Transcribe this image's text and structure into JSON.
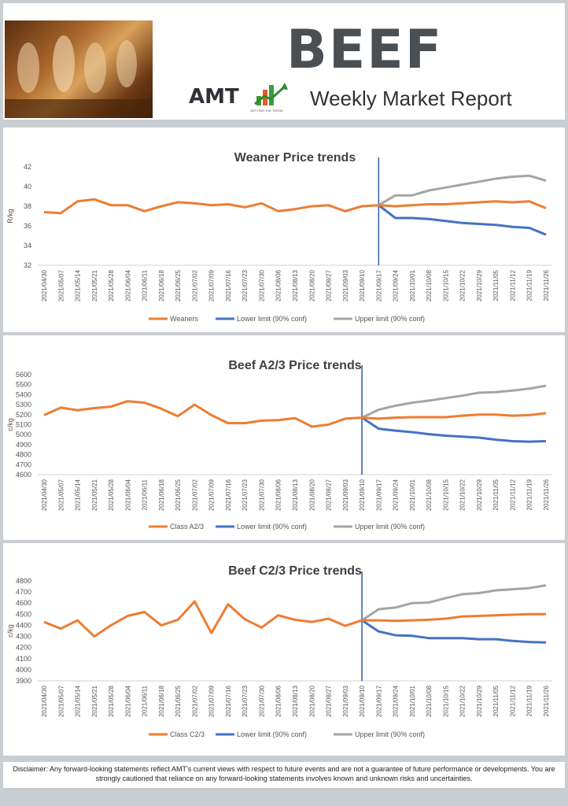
{
  "header": {
    "title": "BEEF",
    "logo_text": "AMT",
    "logo_tagline": "GETTING THE TREND",
    "subtitle": "Weekly Market Report"
  },
  "colors": {
    "actual": "#ed7d31",
    "lower": "#4472c4",
    "upper": "#a5a5a5",
    "divider": "#2e5ca8"
  },
  "chart_data": [
    {
      "type": "line",
      "title": "Weaner Price trends",
      "ylabel": "R/kg",
      "ylim": [
        32,
        42
      ],
      "yticks": [
        32,
        34,
        36,
        38,
        40,
        42
      ],
      "forecast_start": "2021/09/17",
      "categories": [
        "2021/04/30",
        "2021/05/07",
        "2021/05/14",
        "2021/05/21",
        "2021/05/28",
        "2021/06/04",
        "2021/06/11",
        "2021/06/18",
        "2021/06/25",
        "2021/07/02",
        "2021/07/09",
        "2021/07/16",
        "2021/07/23",
        "2021/07/30",
        "2021/08/06",
        "2021/08/13",
        "2021/08/20",
        "2021/08/27",
        "2021/09/03",
        "2021/09/10",
        "2021/09/17",
        "2021/09/24",
        "2021/10/01",
        "2021/10/08",
        "2021/10/15",
        "2021/10/22",
        "2021/10/29",
        "2021/11/05",
        "2021/11/12",
        "2021/11/19",
        "2021/11/26"
      ],
      "series": [
        {
          "name": "Weaners",
          "values": [
            37.4,
            37.3,
            38.5,
            38.7,
            38.1,
            38.1,
            37.5,
            38.0,
            38.4,
            38.3,
            38.1,
            38.2,
            37.9,
            38.3,
            37.5,
            37.7,
            38.0,
            38.1,
            37.5,
            38.0,
            38.1,
            38.0,
            38.1,
            38.2,
            38.2,
            38.3,
            38.4,
            38.5,
            38.4,
            38.5,
            37.8
          ]
        },
        {
          "name": "Lower limit (90% conf)",
          "values": [
            null,
            null,
            null,
            null,
            null,
            null,
            null,
            null,
            null,
            null,
            null,
            null,
            null,
            null,
            null,
            null,
            null,
            null,
            null,
            null,
            38.1,
            36.8,
            36.8,
            36.7,
            36.5,
            36.3,
            36.2,
            36.1,
            35.9,
            35.8,
            35.1
          ]
        },
        {
          "name": "Upper limit (90% conf)",
          "values": [
            null,
            null,
            null,
            null,
            null,
            null,
            null,
            null,
            null,
            null,
            null,
            null,
            null,
            null,
            null,
            null,
            null,
            null,
            null,
            null,
            38.1,
            39.1,
            39.1,
            39.6,
            39.9,
            40.2,
            40.5,
            40.8,
            41.0,
            41.1,
            40.6
          ]
        }
      ]
    },
    {
      "type": "line",
      "title": "Beef A2/3 Price trends",
      "ylabel": "c/kg",
      "ylim": [
        4600,
        5600
      ],
      "yticks": [
        4600,
        4700,
        4800,
        4900,
        5000,
        5100,
        5200,
        5300,
        5400,
        5500,
        5600
      ],
      "forecast_start": "2021/09/10",
      "categories": [
        "2021/04/30",
        "2021/05/07",
        "2021/05/14",
        "2021/05/21",
        "2021/05/28",
        "2021/06/04",
        "2021/06/11",
        "2021/06/18",
        "2021/06/25",
        "2021/07/02",
        "2021/07/09",
        "2021/07/16",
        "2021/07/23",
        "2021/07/30",
        "2021/08/06",
        "2021/08/13",
        "2021/08/20",
        "2021/08/27",
        "2021/09/03",
        "2021/09/10",
        "2021/09/17",
        "2021/09/24",
        "2021/10/01",
        "2021/10/08",
        "2021/10/15",
        "2021/10/22",
        "2021/10/29",
        "2021/11/05",
        "2021/11/12",
        "2021/11/19",
        "2021/11/26"
      ],
      "series": [
        {
          "name": "Class A2/3",
          "values": [
            5195,
            5270,
            5245,
            5265,
            5280,
            5335,
            5320,
            5260,
            5185,
            5300,
            5195,
            5115,
            5115,
            5140,
            5145,
            5165,
            5080,
            5100,
            5160,
            5170,
            5160,
            5170,
            5175,
            5175,
            5175,
            5190,
            5200,
            5200,
            5190,
            5195,
            5215
          ]
        },
        {
          "name": "Lower limit (90% conf)",
          "values": [
            null,
            null,
            null,
            null,
            null,
            null,
            null,
            null,
            null,
            null,
            null,
            null,
            null,
            null,
            null,
            null,
            null,
            null,
            null,
            5170,
            5060,
            5040,
            5025,
            5005,
            4990,
            4980,
            4970,
            4950,
            4935,
            4930,
            4935
          ]
        },
        {
          "name": "Upper limit (90% conf)",
          "values": [
            null,
            null,
            null,
            null,
            null,
            null,
            null,
            null,
            null,
            null,
            null,
            null,
            null,
            null,
            null,
            null,
            null,
            null,
            null,
            5170,
            5250,
            5290,
            5320,
            5340,
            5365,
            5390,
            5420,
            5425,
            5440,
            5460,
            5490
          ]
        }
      ]
    },
    {
      "type": "line",
      "title": "Beef C2/3 Price trends",
      "ylabel": "c/kg",
      "ylim": [
        3900,
        4800
      ],
      "yticks": [
        3900,
        4000,
        4100,
        4200,
        4300,
        4400,
        4500,
        4600,
        4700,
        4800
      ],
      "forecast_start": "2021/09/10",
      "categories": [
        "2021/04/30",
        "2021/05/07",
        "2021/05/14",
        "2021/05/21",
        "2021/05/28",
        "2021/06/04",
        "2021/06/11",
        "2021/06/18",
        "2021/06/25",
        "2021/07/02",
        "2021/07/09",
        "2021/07/16",
        "2021/07/23",
        "2021/07/30",
        "2021/08/06",
        "2021/08/13",
        "2021/08/20",
        "2021/08/27",
        "2021/09/03",
        "2021/09/10",
        "2021/09/17",
        "2021/09/24",
        "2021/10/01",
        "2021/10/08",
        "2021/10/15",
        "2021/10/22",
        "2021/10/29",
        "2021/11/05",
        "2021/11/12",
        "2021/11/19",
        "2021/11/26"
      ],
      "series": [
        {
          "name": "Class C2/3",
          "values": [
            4430,
            4370,
            4445,
            4300,
            4400,
            4485,
            4520,
            4400,
            4450,
            4615,
            4330,
            4590,
            4455,
            4380,
            4490,
            4450,
            4430,
            4460,
            4395,
            4445,
            4445,
            4440,
            4445,
            4450,
            4460,
            4480,
            4485,
            4490,
            4495,
            4500,
            4500
          ]
        },
        {
          "name": "Lower limit (90% conf)",
          "values": [
            null,
            null,
            null,
            null,
            null,
            null,
            null,
            null,
            null,
            null,
            null,
            null,
            null,
            null,
            null,
            null,
            null,
            null,
            null,
            4445,
            4345,
            4310,
            4305,
            4285,
            4285,
            4285,
            4275,
            4275,
            4260,
            4250,
            4245
          ]
        },
        {
          "name": "Upper limit (90% conf)",
          "values": [
            null,
            null,
            null,
            null,
            null,
            null,
            null,
            null,
            null,
            null,
            null,
            null,
            null,
            null,
            null,
            null,
            null,
            null,
            null,
            4445,
            4545,
            4560,
            4600,
            4605,
            4645,
            4680,
            4690,
            4715,
            4725,
            4735,
            4760
          ]
        }
      ]
    }
  ],
  "disclaimer": "Disclaimer:  Any forward-looking statements reflect AMT's current views with respect to future events and are not a guarantee of future performance or developments. You are strongly cautioned that reliance on any forward-looking statements involves known and unknown risks and uncertainties."
}
